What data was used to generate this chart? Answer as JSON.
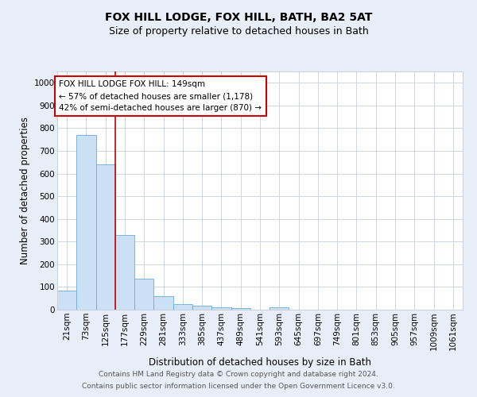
{
  "title": "FOX HILL LODGE, FOX HILL, BATH, BA2 5AT",
  "subtitle": "Size of property relative to detached houses in Bath",
  "xlabel": "Distribution of detached houses by size in Bath",
  "ylabel": "Number of detached properties",
  "footnote1": "Contains HM Land Registry data © Crown copyright and database right 2024.",
  "footnote2": "Contains public sector information licensed under the Open Government Licence v3.0.",
  "categories": [
    "21sqm",
    "73sqm",
    "125sqm",
    "177sqm",
    "229sqm",
    "281sqm",
    "333sqm",
    "385sqm",
    "437sqm",
    "489sqm",
    "541sqm",
    "593sqm",
    "645sqm",
    "697sqm",
    "749sqm",
    "801sqm",
    "853sqm",
    "905sqm",
    "957sqm",
    "1009sqm",
    "1061sqm"
  ],
  "values": [
    83,
    770,
    640,
    330,
    135,
    58,
    25,
    18,
    10,
    7,
    0,
    10,
    0,
    0,
    0,
    0,
    0,
    0,
    0,
    0,
    0
  ],
  "bar_color": "#cce0f5",
  "bar_edge_color": "#6aaad4",
  "vline_x": 2.5,
  "vline_color": "#cc0000",
  "annotation_line1": "FOX HILL LODGE FOX HILL: 149sqm",
  "annotation_line2": "← 57% of detached houses are smaller (1,178)",
  "annotation_line3": "42% of semi-detached houses are larger (870) →",
  "ylim": [
    0,
    1050
  ],
  "yticks": [
    0,
    100,
    200,
    300,
    400,
    500,
    600,
    700,
    800,
    900,
    1000
  ],
  "bg_color": "#e8eef8",
  "plot_bg_color": "#ffffff",
  "grid_color": "#c8d0dc",
  "title_fontsize": 10,
  "subtitle_fontsize": 9,
  "axis_label_fontsize": 8.5,
  "tick_fontsize": 7.5,
  "annotation_fontsize": 7.5,
  "footnote_fontsize": 6.5
}
